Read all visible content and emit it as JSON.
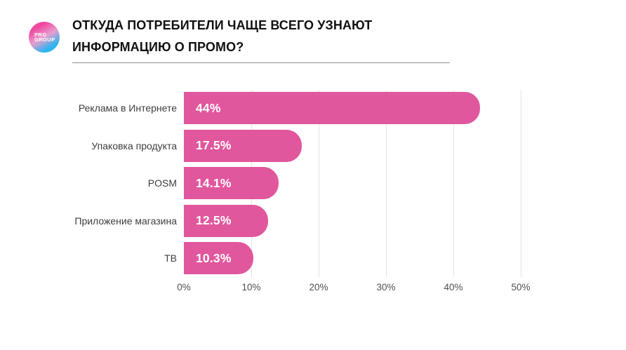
{
  "page": {
    "background": "#ffffff"
  },
  "logo": {
    "line1": "PRG",
    "line2": "GROUP",
    "gradient_start": "#f0489f",
    "gradient_end": "#2db5ee"
  },
  "header": {
    "title_line1": "ОТКУДА ПОТРЕБИТЕЛИ ЧАЩЕ ВСЕГО УЗНАЮТ",
    "title_line2": "ИНФОРМАЦИЮ О ПРОМО?"
  },
  "chart_data": {
    "type": "bar",
    "orientation": "horizontal",
    "title": "ОТКУДА ПОТРЕБИТЕЛИ ЧАЩЕ ВСЕГО УЗНАЮТ ИНФОРМАЦИЮ О ПРОМО?",
    "categories": [
      "Реклама в Интернете",
      "Упаковка продукта",
      "POSM",
      "Приложение магазина",
      "ТВ"
    ],
    "values": [
      44,
      17.5,
      14.1,
      12.5,
      10.3
    ],
    "value_labels": [
      "44%",
      "17.5%",
      "14.1%",
      "12.5%",
      "10.3%"
    ],
    "xlabel": "",
    "ylabel": "",
    "xlim": [
      0,
      50
    ],
    "x_tick_values": [
      0,
      10,
      20,
      30,
      40,
      50
    ],
    "x_tick_labels": [
      "0%",
      "10%",
      "20%",
      "30%",
      "40%",
      "50%"
    ],
    "grid": "vertical, light gray, ticks 10-50 only",
    "legend": "none",
    "bar_color": "#e1579d",
    "bar_label_color": "#ffffff"
  }
}
